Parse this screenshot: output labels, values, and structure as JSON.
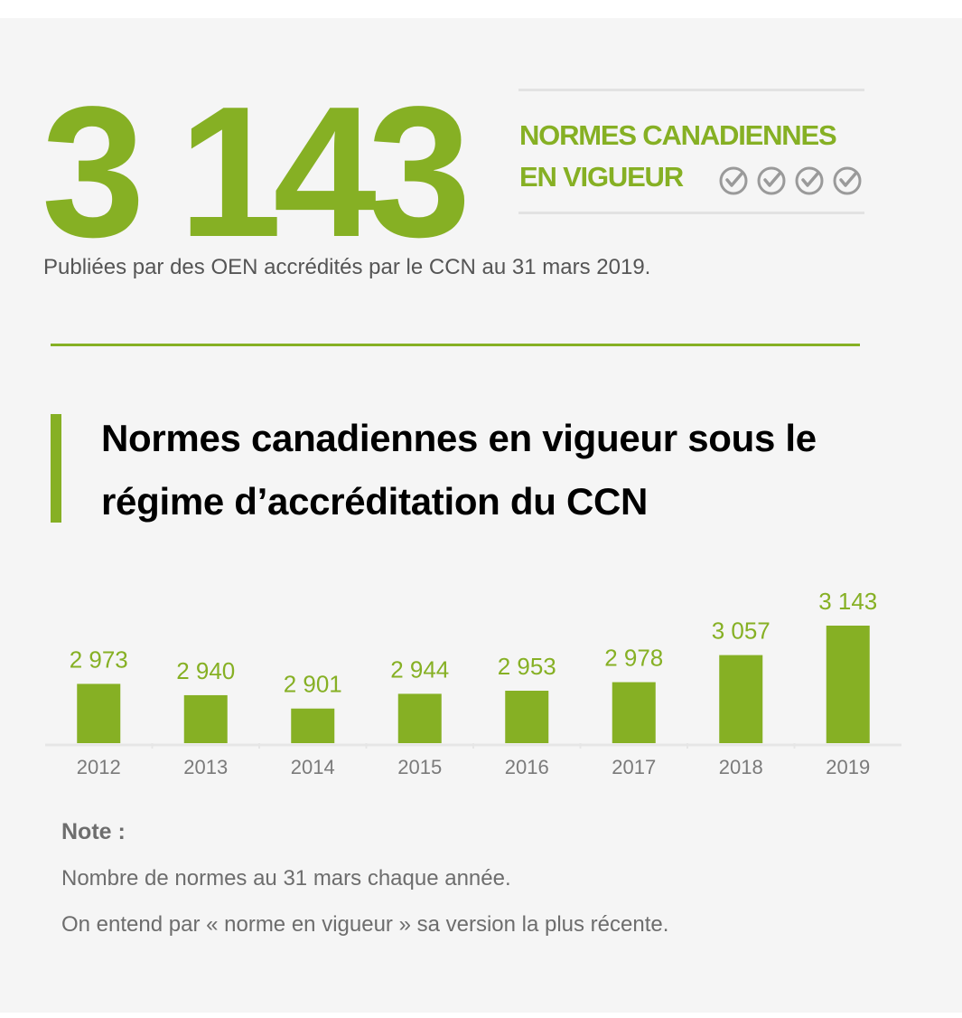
{
  "colors": {
    "accent": "#86b024",
    "text_gray": "#6d6d6d",
    "axis_gray": "#e6e6e6",
    "check_gray": "#9a9a9a"
  },
  "highlight": {
    "number": "3 143",
    "label_line1": "NORMES CANADIENNES",
    "label_line2": "EN VIGUEUR",
    "check_icons": [
      "check-circle-icon",
      "check-circle-icon",
      "check-circle-icon",
      "check-circle-icon"
    ]
  },
  "subtitle": "Publiées par des OEN accrédités par le CCN au 31 mars 2019.",
  "chart_data": {
    "type": "bar",
    "title": "Normes canadiennes en vigueur sous le régime d’accréditation du CCN",
    "categories": [
      "2012",
      "2013",
      "2014",
      "2015",
      "2016",
      "2017",
      "2018",
      "2019"
    ],
    "values": [
      2973,
      2940,
      2901,
      2944,
      2953,
      2978,
      3057,
      3143
    ],
    "value_labels": [
      "2 973",
      "2 940",
      "2 901",
      "2 944",
      "2 953",
      "2 978",
      "3 057",
      "3 143"
    ],
    "highlighted_category": "2019",
    "xlabel": "",
    "ylabel": "",
    "grid": false
  },
  "note": {
    "heading": "Note :",
    "lines": [
      "Nombre de normes au 31 mars chaque année.",
      "On entend par « norme en vigueur » sa version la plus récente."
    ]
  }
}
